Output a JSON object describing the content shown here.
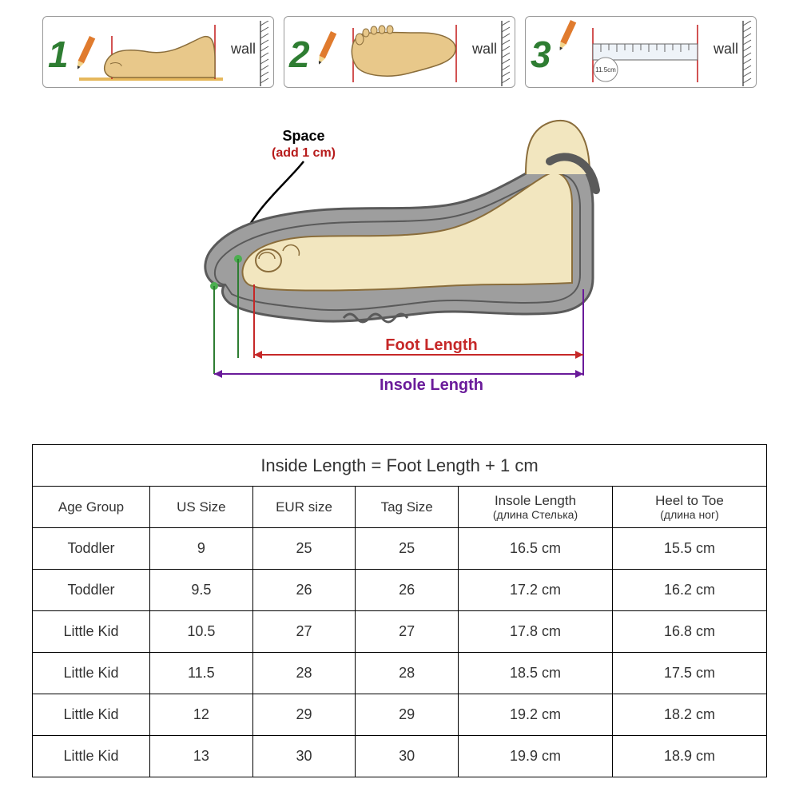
{
  "steps": {
    "numberColor": "#2e7d32",
    "footFill": "#e8c88a",
    "footStroke": "#8a6d3b",
    "lineRed": "#c62828",
    "pencilBody": "#e07b2e",
    "pencilTip": "#f2d48b",
    "pencilLead": "#333",
    "rulerFill": "#d9e6f2",
    "items": [
      {
        "num": "1",
        "wall": "wall"
      },
      {
        "num": "2",
        "wall": "wall"
      },
      {
        "num": "3",
        "wall": "wall",
        "measure": "11.5cm"
      }
    ]
  },
  "diagram": {
    "spaceLabel": "Space",
    "spaceAdd": "(add 1 cm)",
    "footLength": "Foot Length",
    "insoleLength": "Insole Length",
    "footFill": "#f2e6bf",
    "footStroke": "#8a6d3b",
    "shoeFill": "#9e9e9e",
    "shoeStroke": "#5a5a5a",
    "spaceColor": "#b71c1c",
    "footLenColor": "#c62828",
    "insoleColor": "#6a1b9a",
    "greenLine": "#2e7d32",
    "dotGreen": "#4caf50"
  },
  "table": {
    "title": "Inside Length = Foot Length + 1 cm",
    "columns": [
      {
        "label": "Age Group",
        "sub": ""
      },
      {
        "label": "US Size",
        "sub": ""
      },
      {
        "label": "EUR size",
        "sub": ""
      },
      {
        "label": "Tag Size",
        "sub": ""
      },
      {
        "label": "Insole Length",
        "sub": "(длина Стелька)"
      },
      {
        "label": "Heel to Toe",
        "sub": "(длина ног)"
      }
    ],
    "rows": [
      [
        "Toddler",
        "9",
        "25",
        "25",
        "16.5 cm",
        "15.5 cm"
      ],
      [
        "Toddler",
        "9.5",
        "26",
        "26",
        "17.2 cm",
        "16.2 cm"
      ],
      [
        "Little Kid",
        "10.5",
        "27",
        "27",
        "17.8 cm",
        "16.8 cm"
      ],
      [
        "Little Kid",
        "11.5",
        "28",
        "28",
        "18.5 cm",
        "17.5 cm"
      ],
      [
        "Little Kid",
        "12",
        "29",
        "29",
        "19.2 cm",
        "18.2 cm"
      ],
      [
        "Little Kid",
        "13",
        "30",
        "30",
        "19.9 cm",
        "18.9 cm"
      ]
    ],
    "colWidths": [
      "16%",
      "14%",
      "14%",
      "14%",
      "21%",
      "21%"
    ]
  }
}
